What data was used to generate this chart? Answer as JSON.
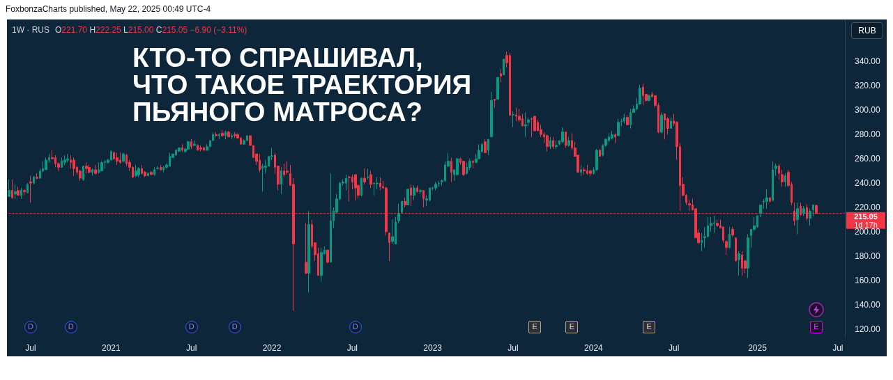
{
  "chart_data": {
    "type": "candlestick",
    "title": "КТО-ТО СПРАШИВАЛ, ЧТО ТАКОЕ ТРАЕКТОРИЯ ПЬЯНОГО МАТРОСА?",
    "x": [
      "2020-05-18",
      "2020-05-25",
      "2020-06-01",
      "2020-06-08",
      "2020-06-15",
      "2020-06-22",
      "2020-06-29",
      "2020-07-06",
      "2020-07-13",
      "2020-07-20",
      "2020-07-27",
      "2020-08-03",
      "2020-08-10",
      "2020-08-17",
      "2020-08-24",
      "2020-08-31",
      "2020-09-07",
      "2020-09-14",
      "2020-09-21",
      "2020-09-28",
      "2020-10-05",
      "2020-10-12",
      "2020-10-19",
      "2020-10-26",
      "2020-11-02",
      "2020-11-09",
      "2020-11-16",
      "2020-11-23",
      "2020-11-30",
      "2020-12-07",
      "2020-12-14",
      "2020-12-21",
      "2020-12-28",
      "2021-01-04",
      "2021-01-11",
      "2021-01-18",
      "2021-01-25",
      "2021-02-01",
      "2021-02-08",
      "2021-02-15",
      "2021-02-22",
      "2021-03-01",
      "2021-03-08",
      "2021-03-15",
      "2021-03-22",
      "2021-03-29",
      "2021-04-05",
      "2021-04-12",
      "2021-04-19",
      "2021-04-26",
      "2021-05-03",
      "2021-05-10",
      "2021-05-17",
      "2021-05-24",
      "2021-05-31",
      "2021-06-07",
      "2021-06-14",
      "2021-06-21",
      "2021-06-28",
      "2021-07-05",
      "2021-07-12",
      "2021-07-19",
      "2021-07-26",
      "2021-08-02",
      "2021-08-09",
      "2021-08-16",
      "2021-08-23",
      "2021-08-30",
      "2021-09-06",
      "2021-09-13",
      "2021-09-20",
      "2021-09-27",
      "2021-10-04",
      "2021-10-11",
      "2021-10-18",
      "2021-10-25",
      "2021-11-01",
      "2021-11-08",
      "2021-11-15",
      "2021-11-22",
      "2021-11-29",
      "2021-12-06",
      "2021-12-13",
      "2021-12-20",
      "2021-12-27",
      "2022-01-03",
      "2022-01-10",
      "2022-01-17",
      "2022-01-24",
      "2022-01-31",
      "2022-02-07",
      "2022-02-14",
      "2022-02-21",
      "2022-03-21",
      "2022-03-28",
      "2022-04-04",
      "2022-04-11",
      "2022-04-18",
      "2022-04-25",
      "2022-05-02",
      "2022-05-09",
      "2022-05-16",
      "2022-05-23",
      "2022-05-30",
      "2022-06-06",
      "2022-06-13",
      "2022-06-20",
      "2022-06-27",
      "2022-07-04",
      "2022-07-11",
      "2022-07-18",
      "2022-07-25",
      "2022-08-01",
      "2022-08-08",
      "2022-08-15",
      "2022-08-22",
      "2022-08-29",
      "2022-09-05",
      "2022-09-12",
      "2022-09-19",
      "2022-09-26",
      "2022-10-03",
      "2022-10-10",
      "2022-10-17",
      "2022-10-24",
      "2022-10-31",
      "2022-11-07",
      "2022-11-14",
      "2022-11-21",
      "2022-11-28",
      "2022-12-05",
      "2022-12-12",
      "2022-12-19",
      "2022-12-26",
      "2023-01-02",
      "2023-01-09",
      "2023-01-16",
      "2023-01-23",
      "2023-01-30",
      "2023-02-06",
      "2023-02-13",
      "2023-02-20",
      "2023-02-27",
      "2023-03-06",
      "2023-03-13",
      "2023-03-20",
      "2023-03-27",
      "2023-04-03",
      "2023-04-10",
      "2023-04-17",
      "2023-04-24",
      "2023-05-01",
      "2023-05-08",
      "2023-05-15",
      "2023-05-22",
      "2023-05-29",
      "2023-06-05",
      "2023-06-12",
      "2023-06-19",
      "2023-06-26",
      "2023-07-03",
      "2023-07-10",
      "2023-07-17",
      "2023-07-24",
      "2023-07-31",
      "2023-08-07",
      "2023-08-14",
      "2023-08-21",
      "2023-08-28",
      "2023-09-04",
      "2023-09-11",
      "2023-09-18",
      "2023-09-25",
      "2023-10-02",
      "2023-10-09",
      "2023-10-16",
      "2023-10-23",
      "2023-10-30",
      "2023-11-06",
      "2023-11-13",
      "2023-11-20",
      "2023-11-27",
      "2023-12-04",
      "2023-12-11",
      "2023-12-18",
      "2023-12-25",
      "2024-01-01",
      "2024-01-08",
      "2024-01-15",
      "2024-01-22",
      "2024-01-29",
      "2024-02-05",
      "2024-02-12",
      "2024-02-19",
      "2024-02-26",
      "2024-03-04",
      "2024-03-11",
      "2024-03-18",
      "2024-03-25",
      "2024-04-01",
      "2024-04-08",
      "2024-04-15",
      "2024-04-22",
      "2024-04-29",
      "2024-05-06",
      "2024-05-13",
      "2024-05-20",
      "2024-05-27",
      "2024-06-03",
      "2024-06-10",
      "2024-06-17",
      "2024-06-24",
      "2024-07-01",
      "2024-07-08",
      "2024-07-15",
      "2024-07-22",
      "2024-07-29",
      "2024-08-05",
      "2024-08-12",
      "2024-08-19",
      "2024-08-26",
      "2024-09-02",
      "2024-09-09",
      "2024-09-16",
      "2024-09-23",
      "2024-09-30",
      "2024-10-07",
      "2024-10-14",
      "2024-10-21",
      "2024-10-28",
      "2024-11-04",
      "2024-11-11",
      "2024-11-18",
      "2024-11-25",
      "2024-12-02",
      "2024-12-09",
      "2024-12-16",
      "2024-12-23",
      "2024-12-30",
      "2025-01-06",
      "2025-01-13",
      "2025-01-20",
      "2025-01-27",
      "2025-02-03",
      "2025-02-10",
      "2025-02-17",
      "2025-02-24",
      "2025-03-03",
      "2025-03-10",
      "2025-03-17",
      "2025-03-24",
      "2025-03-31",
      "2025-04-07",
      "2025-04-14",
      "2025-04-21",
      "2025-04-28",
      "2025-05-05",
      "2025-05-12",
      "2025-05-19"
    ],
    "ohlc": [
      [
        229,
        243,
        229,
        234
      ],
      [
        234,
        243,
        227,
        228
      ],
      [
        231,
        239,
        227,
        233
      ],
      [
        234,
        237,
        230,
        230
      ],
      [
        230,
        236,
        227,
        234
      ],
      [
        234,
        235,
        230,
        233
      ],
      [
        232,
        240,
        232,
        239
      ],
      [
        241,
        246,
        224,
        240
      ],
      [
        240,
        246,
        239,
        245
      ],
      [
        245,
        248,
        243,
        244
      ],
      [
        244,
        252,
        244,
        250
      ],
      [
        250,
        258,
        249,
        252
      ],
      [
        251,
        261,
        251,
        259
      ],
      [
        259,
        264,
        257,
        261
      ],
      [
        261,
        267,
        260,
        260
      ],
      [
        261,
        263,
        253,
        256
      ],
      [
        256,
        257,
        250,
        253
      ],
      [
        253,
        261,
        253,
        258
      ],
      [
        257,
        263,
        255,
        259
      ],
      [
        259,
        264,
        257,
        260
      ],
      [
        259,
        263,
        252,
        257
      ],
      [
        259,
        261,
        246,
        252
      ],
      [
        253,
        254,
        247,
        249
      ],
      [
        250,
        251,
        242,
        244
      ],
      [
        243,
        254,
        242,
        254
      ],
      [
        254,
        257,
        248,
        252
      ],
      [
        253,
        255,
        248,
        249
      ],
      [
        249,
        252,
        246,
        251
      ],
      [
        251,
        255,
        247,
        248
      ],
      [
        249,
        257,
        248,
        251
      ],
      [
        250,
        258,
        250,
        257
      ],
      [
        257,
        259,
        252,
        257.5
      ],
      [
        257,
        260,
        256,
        259
      ],
      [
        259,
        267,
        259,
        266
      ],
      [
        265,
        266,
        259,
        260
      ],
      [
        261,
        265,
        255,
        258
      ],
      [
        259,
        265,
        256,
        257
      ],
      [
        258,
        265,
        257,
        264
      ],
      [
        263,
        264,
        254,
        256
      ],
      [
        257,
        259,
        250,
        253
      ],
      [
        253,
        254,
        244,
        245
      ],
      [
        246,
        255,
        245,
        250
      ],
      [
        247,
        253,
        245,
        252
      ],
      [
        252,
        255,
        247,
        248
      ],
      [
        249,
        250,
        245,
        246
      ],
      [
        246,
        249,
        246,
        248
      ],
      [
        249,
        250,
        247,
        247
      ],
      [
        247,
        253,
        246,
        251
      ],
      [
        252,
        254,
        251,
        252.5
      ],
      [
        253,
        255,
        250,
        251
      ],
      [
        251,
        254,
        249,
        253
      ],
      [
        253,
        256,
        252,
        255
      ],
      [
        254,
        265,
        254,
        262
      ],
      [
        261,
        264,
        261,
        264
      ],
      [
        263,
        268,
        263,
        267
      ],
      [
        266,
        269,
        266,
        269
      ],
      [
        269,
        272,
        266,
        267
      ],
      [
        266,
        269,
        265,
        268
      ],
      [
        268,
        275,
        267,
        274
      ],
      [
        274,
        276,
        268,
        270
      ],
      [
        271,
        275,
        271,
        272
      ],
      [
        271,
        272,
        267,
        267
      ],
      [
        269,
        271,
        266,
        268
      ],
      [
        269,
        270,
        267,
        267
      ],
      [
        267,
        272,
        267,
        270
      ],
      [
        270,
        275,
        270,
        275
      ],
      [
        275,
        282,
        275,
        280
      ],
      [
        280,
        282,
        278,
        279
      ],
      [
        279,
        281,
        276,
        280
      ],
      [
        281,
        284,
        278,
        279
      ],
      [
        279,
        283,
        276,
        282
      ],
      [
        282,
        283,
        278,
        278
      ],
      [
        278,
        281,
        276,
        279
      ],
      [
        280,
        282,
        277,
        279
      ],
      [
        280,
        281,
        277,
        277
      ],
      [
        277,
        278,
        272,
        272
      ],
      [
        272,
        276,
        272,
        275
      ],
      [
        275,
        279,
        275,
        279
      ],
      [
        279,
        279,
        271,
        271
      ],
      [
        271,
        271,
        261,
        261
      ],
      [
        264,
        264,
        255,
        258
      ],
      [
        259,
        264,
        249,
        251
      ],
      [
        252,
        256,
        233,
        254
      ],
      [
        253,
        259,
        248,
        254
      ],
      [
        254,
        262,
        254,
        262
      ],
      [
        262,
        269,
        259,
        262.5
      ],
      [
        263,
        265,
        247,
        253
      ],
      [
        254,
        254,
        234,
        239
      ],
      [
        239,
        253,
        231,
        250
      ],
      [
        250,
        256,
        245,
        247
      ],
      [
        250,
        258,
        247,
        249
      ],
      [
        248,
        255,
        238,
        238
      ],
      [
        239,
        244,
        135,
        190
      ],
      [
        175,
        207,
        165,
        166
      ],
      [
        166,
        217,
        150,
        206
      ],
      [
        206,
        210,
        186,
        188
      ],
      [
        191,
        191,
        176,
        181
      ],
      [
        182,
        187,
        164,
        164
      ],
      [
        164,
        187,
        159,
        183
      ],
      [
        182,
        188,
        181,
        185
      ],
      [
        185,
        185,
        174,
        175
      ],
      [
        175,
        248,
        175,
        209
      ],
      [
        209,
        220,
        203,
        217
      ],
      [
        216,
        231,
        215,
        227
      ],
      [
        227,
        241,
        226,
        240
      ],
      [
        240,
        243,
        238,
        241
      ],
      [
        240,
        247,
        234,
        244
      ],
      [
        245,
        246,
        225,
        244.5
      ],
      [
        245,
        247,
        235,
        241
      ],
      [
        247,
        247,
        226,
        236
      ],
      [
        238,
        239,
        227,
        230
      ],
      [
        230,
        245,
        229,
        244
      ],
      [
        244,
        252,
        239,
        241
      ],
      [
        244.5,
        252,
        243,
        245
      ],
      [
        247,
        250,
        236,
        239
      ],
      [
        239.5,
        240,
        230,
        240
      ],
      [
        239.5,
        245,
        235,
        240
      ],
      [
        240,
        245,
        234,
        237
      ],
      [
        237,
        242,
        235.5,
        236
      ],
      [
        236,
        237,
        197,
        200
      ],
      [
        199,
        199,
        176,
        191
      ],
      [
        192,
        210,
        190,
        196
      ],
      [
        190,
        212,
        190,
        208
      ],
      [
        209,
        223,
        207,
        215
      ],
      [
        216,
        225,
        215,
        225
      ],
      [
        225,
        228,
        220,
        222
      ],
      [
        222,
        235,
        222,
        235
      ],
      [
        236,
        239,
        221,
        230
      ],
      [
        230,
        238,
        226,
        236
      ],
      [
        236,
        238,
        232,
        233
      ],
      [
        233,
        235,
        231,
        234
      ],
      [
        234,
        234,
        220,
        227
      ],
      [
        226,
        230,
        221,
        227
      ],
      [
        226,
        236,
        225,
        236
      ],
      [
        235.5,
        237,
        234,
        236
      ],
      [
        236,
        241,
        234,
        239
      ],
      [
        239.5,
        242,
        237,
        240
      ],
      [
        241,
        243,
        238,
        242
      ],
      [
        242,
        258,
        241,
        255
      ],
      [
        254,
        265,
        253,
        258
      ],
      [
        258,
        261,
        241,
        249
      ],
      [
        247,
        251,
        242,
        251
      ],
      [
        247,
        261,
        246,
        260
      ],
      [
        260,
        261,
        255,
        257
      ],
      [
        258,
        258,
        246,
        247
      ],
      [
        248,
        257,
        247,
        253
      ],
      [
        253,
        260,
        251,
        258
      ],
      [
        258,
        259,
        252,
        257
      ],
      [
        257,
        264,
        257,
        260
      ],
      [
        260,
        272,
        260,
        267
      ],
      [
        266,
        273,
        265,
        272
      ],
      [
        274,
        276,
        265,
        265
      ],
      [
        267,
        276,
        263,
        276
      ],
      [
        278,
        315,
        278,
        308
      ],
      [
        309,
        309,
        302,
        308
      ],
      [
        309,
        327,
        309,
        327
      ],
      [
        330,
        334,
        323,
        328
      ],
      [
        329,
        342,
        329,
        342
      ],
      [
        345,
        348,
        335,
        339
      ],
      [
        345,
        347,
        295,
        296
      ],
      [
        296,
        299,
        286,
        296.5
      ],
      [
        296,
        302,
        291,
        295
      ],
      [
        295,
        301,
        290,
        292
      ],
      [
        293,
        297,
        287,
        287
      ],
      [
        287,
        298,
        278,
        288
      ],
      [
        290,
        294,
        287,
        292
      ],
      [
        293,
        294,
        278,
        292.5
      ],
      [
        295,
        295,
        283,
        283
      ],
      [
        290,
        292,
        283,
        283
      ],
      [
        284,
        288,
        278,
        280
      ],
      [
        280,
        282,
        273,
        278
      ],
      [
        279,
        280,
        266,
        270
      ],
      [
        270,
        278,
        268,
        275
      ],
      [
        275,
        278,
        268,
        270
      ],
      [
        270,
        275,
        268,
        271
      ],
      [
        272,
        275,
        271,
        275
      ],
      [
        274,
        286,
        273,
        282
      ],
      [
        282,
        282,
        269,
        271
      ],
      [
        271,
        278,
        270,
        275
      ],
      [
        275,
        281,
        267,
        269
      ],
      [
        269,
        274,
        262,
        262
      ],
      [
        263,
        263,
        249,
        249
      ],
      [
        249,
        255,
        246,
        251
      ],
      [
        251,
        253,
        247,
        250
      ],
      [
        250,
        255,
        247,
        248
      ],
      [
        250,
        251,
        246,
        248
      ],
      [
        248,
        253,
        247,
        251
      ],
      [
        251,
        268,
        250,
        267
      ],
      [
        267,
        268,
        262,
        262
      ],
      [
        263,
        272,
        262,
        271
      ],
      [
        271,
        277,
        270,
        276
      ],
      [
        275,
        281,
        274,
        278
      ],
      [
        277,
        283,
        276,
        280
      ],
      [
        280,
        281,
        273,
        278
      ],
      [
        279,
        293,
        279,
        290
      ],
      [
        290.5,
        293,
        287,
        291
      ],
      [
        291,
        297,
        289,
        294
      ],
      [
        294,
        296,
        288,
        288
      ],
      [
        288,
        301,
        285,
        298
      ],
      [
        298,
        304,
        298,
        301
      ],
      [
        301,
        310,
        300,
        305
      ],
      [
        305,
        321,
        305,
        318
      ],
      [
        319,
        322,
        304,
        312
      ],
      [
        313,
        313,
        307,
        308
      ],
      [
        308,
        313,
        307,
        312
      ],
      [
        313,
        315,
        311,
        311
      ],
      [
        312,
        312,
        302,
        304
      ],
      [
        304,
        306,
        281,
        282
      ],
      [
        282,
        298,
        281,
        296
      ],
      [
        297,
        297,
        276,
        292
      ],
      [
        293,
        294,
        280,
        285
      ],
      [
        285,
        294,
        285,
        291
      ],
      [
        291,
        297,
        287,
        289
      ],
      [
        290,
        291,
        259,
        270
      ],
      [
        270,
        273,
        217,
        238
      ],
      [
        239,
        245,
        229,
        230
      ],
      [
        230,
        231,
        222,
        224
      ],
      [
        223,
        226,
        217,
        222
      ],
      [
        222,
        227,
        217.5,
        218
      ],
      [
        219,
        219,
        195,
        195
      ],
      [
        199,
        202,
        190,
        191
      ],
      [
        191,
        199,
        184,
        193
      ],
      [
        195,
        204,
        187,
        196
      ],
      [
        196,
        212,
        195.5,
        205
      ],
      [
        205,
        212,
        200,
        207
      ],
      [
        207,
        213,
        199,
        207.5
      ],
      [
        207,
        210,
        204,
        205
      ],
      [
        205,
        210,
        202.5,
        203
      ],
      [
        204,
        204,
        191,
        193
      ],
      [
        192,
        193,
        181,
        187
      ],
      [
        187,
        204,
        186,
        198
      ],
      [
        202,
        204,
        196,
        197.5
      ],
      [
        195,
        195,
        176,
        176
      ],
      [
        177,
        184,
        164,
        182
      ],
      [
        181,
        184,
        164,
        170
      ],
      [
        176,
        177,
        166,
        170
      ],
      [
        170,
        198,
        162,
        195
      ],
      [
        197,
        202,
        187,
        202
      ],
      [
        202,
        212,
        201,
        205
      ],
      [
        204,
        214,
        203,
        213
      ],
      [
        215,
        222,
        212,
        222
      ],
      [
        224.5,
        227,
        219,
        225
      ],
      [
        225,
        235,
        219,
        228
      ],
      [
        228,
        228,
        224,
        225
      ],
      [
        226,
        258,
        225,
        251
      ],
      [
        252,
        256,
        246,
        254
      ],
      [
        254,
        256,
        243,
        248
      ],
      [
        247,
        251,
        237,
        241
      ],
      [
        241,
        248,
        237,
        246
      ],
      [
        249,
        251,
        237,
        238
      ],
      [
        239,
        241,
        222,
        224
      ],
      [
        217,
        224,
        205,
        209
      ],
      [
        210,
        224,
        198,
        219
      ],
      [
        221,
        224,
        213,
        214
      ],
      [
        215,
        221,
        213,
        219
      ],
      [
        220,
        223,
        209,
        211
      ],
      [
        211,
        219,
        205,
        217
      ],
      [
        218,
        222,
        213,
        222
      ],
      [
        221.7,
        222.25,
        215,
        215.05
      ]
    ],
    "xlim": [
      "2020-05-15",
      "2025-07-23"
    ],
    "xticks": [
      {
        "value": "2020-07-06",
        "label": "Jul"
      },
      {
        "value": "2021-01-04",
        "label": "2021"
      },
      {
        "value": "2021-07-05",
        "label": "Jul"
      },
      {
        "value": "2022-01-03",
        "label": "2022"
      },
      {
        "value": "2022-07-04",
        "label": "Jul"
      },
      {
        "value": "2023-01-02",
        "label": "2023"
      },
      {
        "value": "2023-07-03",
        "label": "Jul"
      },
      {
        "value": "2024-01-01",
        "label": "2024"
      },
      {
        "value": "2024-07-01",
        "label": "Jul"
      },
      {
        "value": "2025-01-06",
        "label": "2025"
      },
      {
        "value": "2025-07-07",
        "label": "Jul"
      }
    ],
    "ylim": [
      113,
      374
    ],
    "yticks": [
      {
        "value": 120,
        "label": "120.00"
      },
      {
        "value": 140,
        "label": "140.00"
      },
      {
        "value": 160,
        "label": "160.00"
      },
      {
        "value": 180,
        "label": "180.00"
      },
      {
        "value": 200,
        "label": "200.00"
      },
      {
        "value": 220,
        "label": "220.00"
      },
      {
        "value": 240,
        "label": "240.00"
      },
      {
        "value": 260,
        "label": "260.00"
      },
      {
        "value": 280,
        "label": "280.00"
      },
      {
        "value": 300,
        "label": "300.00"
      },
      {
        "value": 320,
        "label": "320.00"
      },
      {
        "value": 340,
        "label": "340.00"
      }
    ],
    "ref_lines": [
      {
        "axis": "y",
        "value": 215.05,
        "label": "215.05",
        "color": "#f23645",
        "line_style": "dotted"
      }
    ],
    "annotations": [
      "FoxbonzaCharts published, May 22, 2025 00:49 UTC-4",
      "1W · RUS",
      "O221.70 H222.25 L215.00 C215.05 −6.90 (−3.11%)",
      "RUB",
      "1d 17h",
      {
        "text": "D",
        "x": "2020-07-06"
      },
      {
        "text": "D",
        "x": "2020-10-05"
      },
      {
        "text": "D",
        "x": "2021-07-05"
      },
      {
        "text": "D",
        "x": "2021-10-11"
      },
      {
        "text": "D",
        "x": "2022-07-11"
      },
      {
        "text": "E",
        "x": "2023-08-21"
      },
      {
        "text": "E",
        "x": "2023-11-13"
      },
      {
        "text": "E",
        "x": "2024-05-06"
      },
      {
        "text": "E",
        "x": "2025-05-19"
      }
    ]
  }
}
